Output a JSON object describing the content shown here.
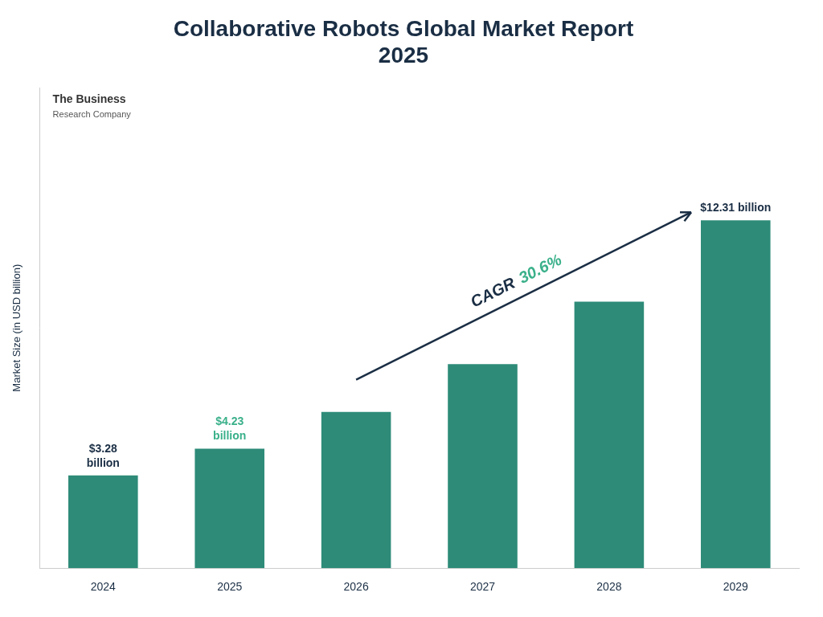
{
  "chart_data": {
    "type": "bar",
    "title": "Collaborative Robots Global Market Report\n2025",
    "ylabel": "Market Size (in USD billion)",
    "text_color": "#1a2e44",
    "categories": [
      "2024",
      "2025",
      "2026",
      "2027",
      "2028",
      "2029"
    ],
    "values": [
      3.28,
      4.23,
      5.53,
      7.22,
      9.43,
      12.31
    ],
    "color": "#2d8b78",
    "ylim": [
      0,
      17
    ],
    "yticks": [],
    "tick_labels": "x",
    "grid": false,
    "annotations": [
      {
        "text": "$3.28\nbillion",
        "category": "2024",
        "color": "#1a2e44"
      },
      {
        "text": "$4.23\nbillion",
        "category": "2025",
        "color": "#3ab08a"
      },
      {
        "text": "$12.31 billion",
        "category": "2029",
        "color": "#1a2e44"
      }
    ],
    "cagr": {
      "label": "CAGR",
      "label_color": "#1a2e44",
      "value_text": "30.6%",
      "value_color": "#3ab08a",
      "arrow_color": "#1a2e44",
      "from": "2026",
      "to": "2029"
    },
    "logo": [
      "The Business",
      "Research Company"
    ]
  }
}
